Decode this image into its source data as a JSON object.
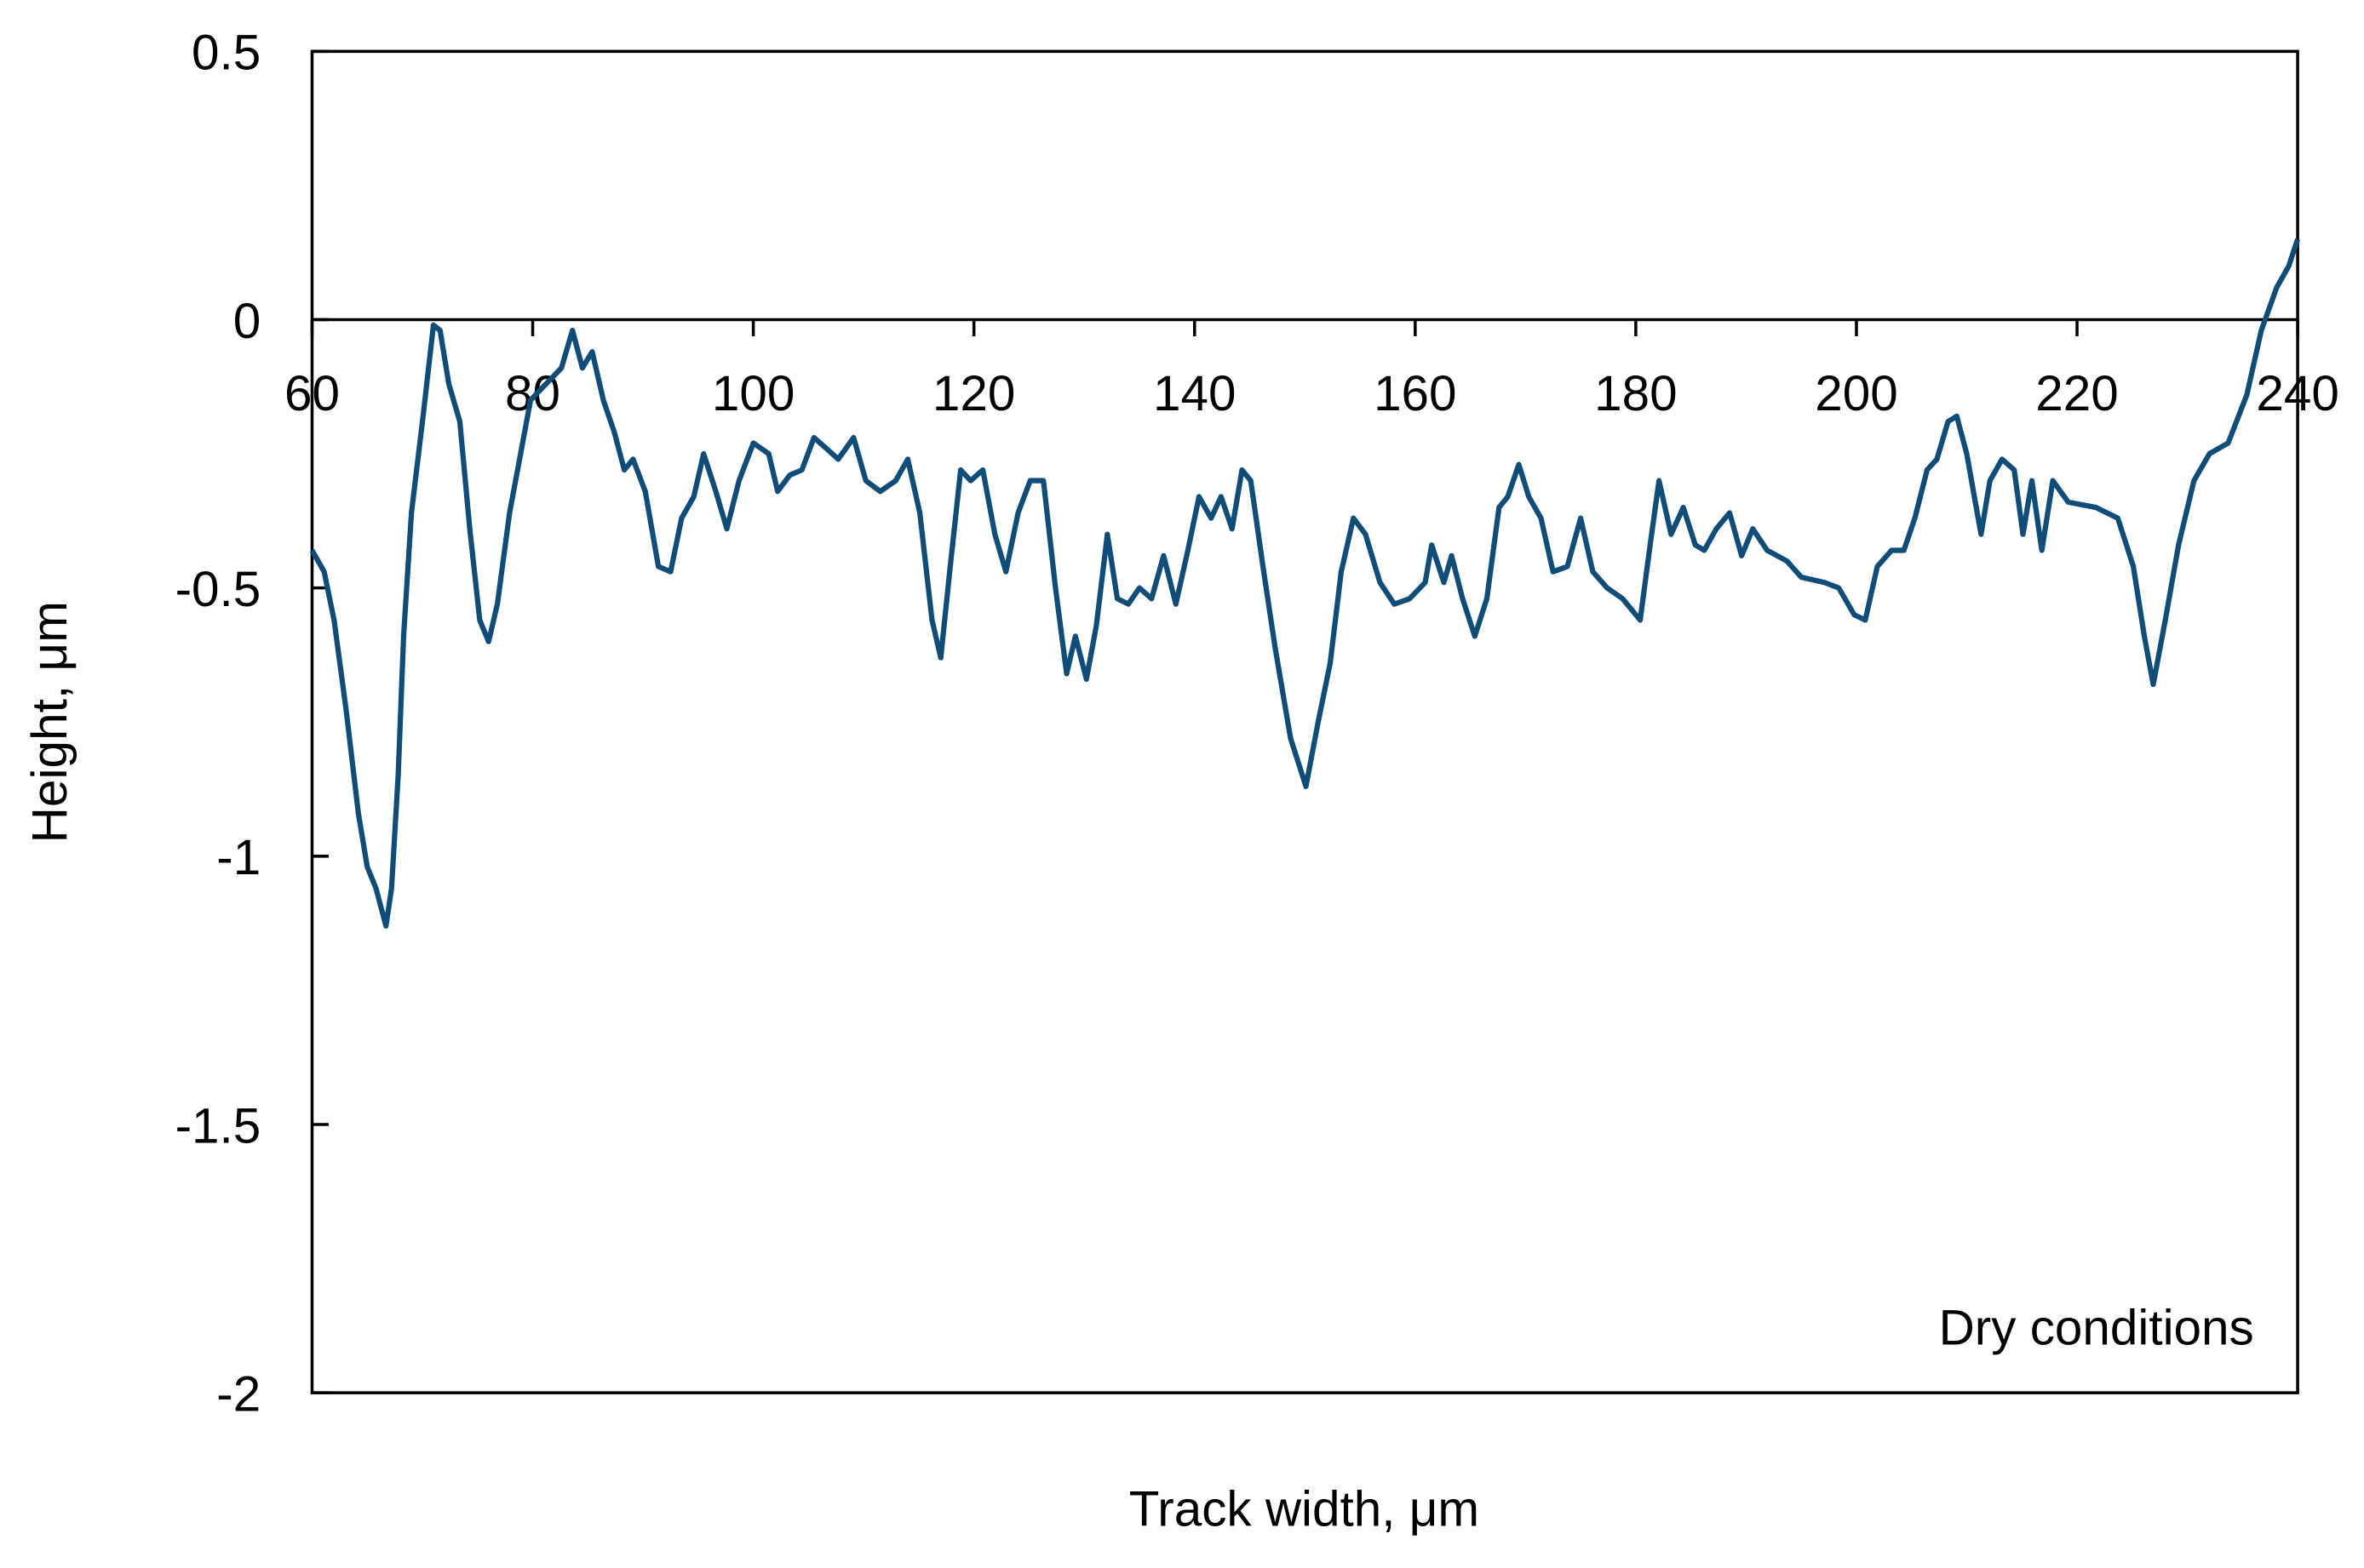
{
  "chart_data": {
    "type": "line",
    "xlabel": "Track width,  μm",
    "ylabel": "Height,  μm",
    "annotation": "Dry  conditions",
    "xlim": [
      60,
      240
    ],
    "ylim": [
      -2,
      0.5
    ],
    "xticks": [
      60,
      80,
      100,
      120,
      140,
      160,
      180,
      200,
      220,
      240
    ],
    "yticks": [
      -2,
      -1.5,
      -1,
      -0.5,
      0,
      0.5
    ],
    "grid": false,
    "series": [
      {
        "color": "#0f4c78",
        "x": [
          60,
          61.1,
          62,
          63.1,
          64.2,
          65,
          65.8,
          66.7,
          67.2,
          67.8,
          68.3,
          69,
          70,
          71,
          71.6,
          72.4,
          73.4,
          74.3,
          75.2,
          76,
          76.8,
          77.9,
          78.9,
          79.8,
          81.2,
          82.6,
          83.6,
          84.5,
          85.4,
          86.4,
          87.4,
          88.3,
          89.1,
          90.2,
          91.4,
          92.5,
          93.5,
          94.6,
          95.5,
          96.6,
          97.6,
          98.7,
          100,
          101.4,
          102.2,
          103.3,
          104.4,
          105.5,
          106.6,
          107.7,
          109.1,
          110.2,
          111.5,
          112.9,
          114,
          115.1,
          116.2,
          117,
          117.8,
          118.8,
          119.7,
          120.8,
          121.9,
          122.9,
          124,
          125.1,
          126.3,
          127.4,
          128.4,
          129.2,
          130.2,
          131.1,
          132.1,
          133,
          134,
          135,
          136.1,
          137.2,
          138.3,
          139.4,
          140.4,
          141.5,
          142.4,
          143.4,
          144.3,
          145.1,
          146.2,
          147.3,
          148.7,
          150.1,
          151.2,
          152.3,
          153.3,
          154.4,
          155.5,
          156.8,
          158.1,
          159.5,
          160.9,
          161.5,
          162.6,
          163.3,
          164.3,
          165.4,
          166.5,
          167.6,
          168.4,
          169.4,
          170.3,
          171.4,
          172.5,
          173.8,
          175,
          176.1,
          177.4,
          178.8,
          180.4,
          181.3,
          182.1,
          183.2,
          184.3,
          185.4,
          186.2,
          187.3,
          188.5,
          189.6,
          190.6,
          191.9,
          193.7,
          195,
          197.1,
          198.4,
          199.8,
          200.8,
          201.9,
          203.2,
          204.3,
          205.3,
          206.4,
          207.3,
          208.3,
          209.1,
          210,
          211.3,
          212.1,
          213.2,
          214.3,
          215.1,
          215.9,
          216.8,
          217.8,
          219.2,
          221.7,
          223.7,
          225.1,
          226.1,
          226.9,
          228,
          229.2,
          230.6,
          232,
          233.7,
          235.4,
          236.7,
          238.1,
          239.2,
          240
        ],
        "values": [
          -0.43,
          -0.47,
          -0.56,
          -0.73,
          -0.92,
          -1.02,
          -1.06,
          -1.13,
          -1.06,
          -0.85,
          -0.59,
          -0.36,
          -0.19,
          -0.01,
          -0.02,
          -0.12,
          -0.19,
          -0.39,
          -0.56,
          -0.6,
          -0.53,
          -0.36,
          -0.25,
          -0.15,
          -0.12,
          -0.09,
          -0.02,
          -0.09,
          -0.06,
          -0.15,
          -0.21,
          -0.28,
          -0.26,
          -0.32,
          -0.46,
          -0.47,
          -0.37,
          -0.33,
          -0.25,
          -0.32,
          -0.39,
          -0.3,
          -0.23,
          -0.25,
          -0.32,
          -0.29,
          -0.28,
          -0.22,
          -0.24,
          -0.26,
          -0.22,
          -0.3,
          -0.32,
          -0.3,
          -0.26,
          -0.36,
          -0.56,
          -0.63,
          -0.47,
          -0.28,
          -0.3,
          -0.28,
          -0.4,
          -0.47,
          -0.36,
          -0.3,
          -0.3,
          -0.5,
          -0.66,
          -0.59,
          -0.67,
          -0.57,
          -0.4,
          -0.52,
          -0.53,
          -0.5,
          -0.52,
          -0.44,
          -0.53,
          -0.43,
          -0.33,
          -0.37,
          -0.33,
          -0.39,
          -0.28,
          -0.3,
          -0.46,
          -0.61,
          -0.78,
          -0.87,
          -0.75,
          -0.64,
          -0.47,
          -0.37,
          -0.4,
          -0.49,
          -0.53,
          -0.52,
          -0.49,
          -0.42,
          -0.49,
          -0.44,
          -0.52,
          -0.59,
          -0.52,
          -0.35,
          -0.33,
          -0.27,
          -0.33,
          -0.37,
          -0.47,
          -0.46,
          -0.37,
          -0.47,
          -0.5,
          -0.52,
          -0.56,
          -0.42,
          -0.3,
          -0.4,
          -0.35,
          -0.42,
          -0.43,
          -0.39,
          -0.36,
          -0.44,
          -0.39,
          -0.43,
          -0.45,
          -0.48,
          -0.49,
          -0.5,
          -0.55,
          -0.56,
          -0.46,
          -0.43,
          -0.43,
          -0.37,
          -0.28,
          -0.26,
          -0.19,
          -0.18,
          -0.25,
          -0.4,
          -0.3,
          -0.26,
          -0.28,
          -0.4,
          -0.3,
          -0.43,
          -0.3,
          -0.34,
          -0.35,
          -0.37,
          -0.46,
          -0.59,
          -0.68,
          -0.56,
          -0.42,
          -0.3,
          -0.25,
          -0.23,
          -0.14,
          -0.02,
          0.06,
          0.1,
          0.15
        ]
      }
    ]
  }
}
